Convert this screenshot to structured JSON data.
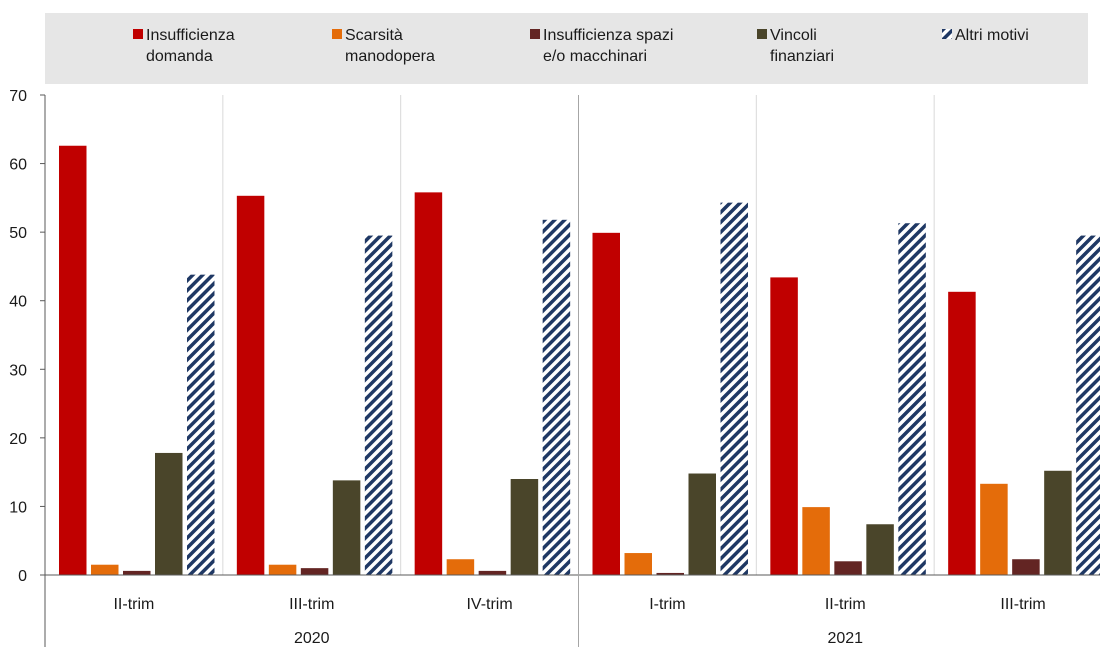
{
  "chart_data": {
    "type": "bar",
    "title": "",
    "xlabel": "",
    "ylabel": "",
    "ylim": [
      0,
      70
    ],
    "yticks": [
      0,
      10,
      20,
      30,
      40,
      50,
      60,
      70
    ],
    "grid": "vertical separators between quarters",
    "legend_position": "top",
    "categories": [
      "II-trim",
      "III-trim",
      "IV-trim",
      "I-trim",
      "II-trim",
      "III-trim"
    ],
    "groups": [
      {
        "label": "2020",
        "categories": 3
      },
      {
        "label": "2021",
        "categories": 3
      }
    ],
    "series": [
      {
        "name": "Insufficienza domanda",
        "legend_lines": [
          "Insufficienza",
          "domanda"
        ],
        "color": "#c00000",
        "pattern": "solid",
        "values": [
          62.6,
          55.3,
          55.8,
          49.9,
          43.4,
          41.3
        ]
      },
      {
        "name": "Scarsità manodopera",
        "legend_lines": [
          "Scarsità",
          "manodopera"
        ],
        "color": "#e46c0a",
        "pattern": "solid",
        "values": [
          1.5,
          1.5,
          2.3,
          3.2,
          9.9,
          13.3
        ]
      },
      {
        "name": "Insufficienza spazi e/o macchinari",
        "legend_lines": [
          "Insufficienza spazi",
          "e/o macchinari"
        ],
        "color": "#632523",
        "pattern": "solid",
        "values": [
          0.6,
          1.0,
          0.6,
          0.3,
          2.0,
          2.3
        ]
      },
      {
        "name": "Vincoli finanziari",
        "legend_lines": [
          "Vincoli",
          "finanziari"
        ],
        "color": "#4a452a",
        "pattern": "solid",
        "values": [
          17.8,
          13.8,
          14.0,
          14.8,
          7.4,
          15.2
        ]
      },
      {
        "name": "Altri motivi",
        "legend_lines": [
          "Altri motivi"
        ],
        "color": "#1f3864",
        "pattern": "diagonal-hatch",
        "values": [
          43.8,
          49.5,
          51.8,
          54.3,
          51.3,
          49.5
        ]
      }
    ]
  }
}
